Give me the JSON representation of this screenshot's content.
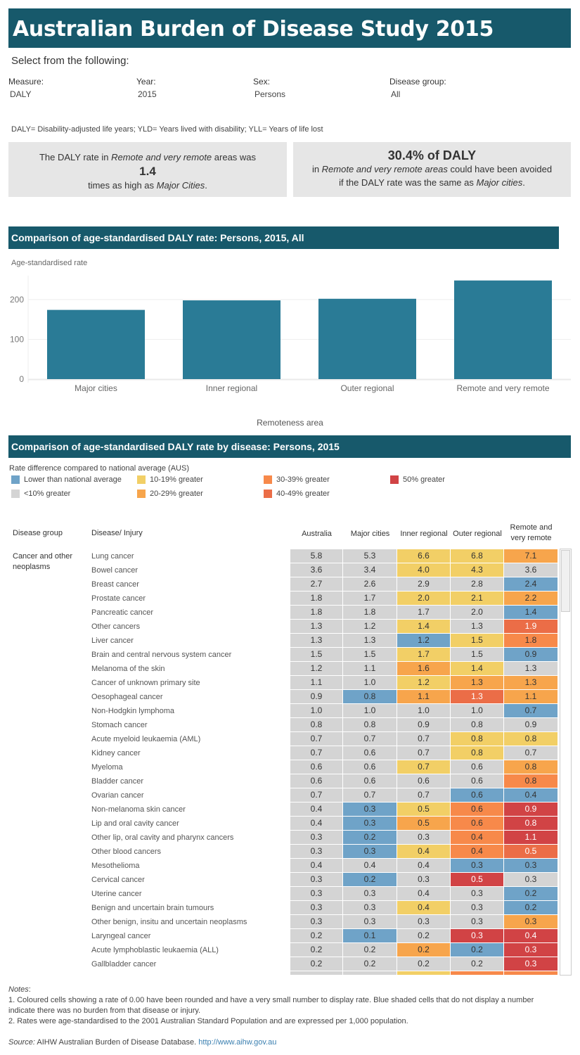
{
  "header": {
    "title": "Australian Burden of Disease Study 2015",
    "select_prompt": "Select from the following:"
  },
  "filters": [
    {
      "label": "Measure:",
      "value": "DALY"
    },
    {
      "label": "Year:",
      "value": "2015"
    },
    {
      "label": "Sex:",
      "value": "Persons"
    },
    {
      "label": "Disease group:",
      "value": "All"
    }
  ],
  "abbreviations": "DALY= Disability-adjusted life years; YLD= Years lived with disability; YLL= Years of life lost",
  "summary_left": {
    "pre": "The DALY rate in ",
    "area": "Remote and very remote",
    "post": " areas was",
    "value": "1.4",
    "line3a": "times as high as ",
    "ref": "Major Cities",
    "line3b": "."
  },
  "summary_right": {
    "headline": "30.4% of DALY",
    "l2a": "in ",
    "area": "Remote and very remote areas",
    "l2b": " could have been avoided",
    "l3a": "if the DALY rate was the same as ",
    "ref": "Major cities",
    "l3b": "."
  },
  "bar_section": {
    "title": "Comparison of age-standardised DALY rate:  Persons, 2015, All"
  },
  "chart_data": {
    "type": "bar",
    "title": "Comparison of age-standardised DALY rate:  Persons, 2015, All",
    "ylabel": "Age-standardised rate",
    "xlabel": "Remoteness area",
    "categories": [
      "Major cities",
      "Inner regional",
      "Outer regional",
      "Remote and very remote"
    ],
    "values": [
      174,
      198,
      202,
      248
    ],
    "ylim": [
      0,
      260
    ],
    "yticks": [
      "0",
      "100",
      "200"
    ],
    "grid": true,
    "color": "#2a7b96"
  },
  "table_section": {
    "title": "Comparison of age-standardised DALY rate by disease: Persons, 2015"
  },
  "legend": {
    "title": "Rate difference compared to national average (AUS)",
    "items": [
      {
        "key": "lower",
        "label": "Lower than national average",
        "color": "#6fa3c8"
      },
      {
        "key": "lt10",
        "label": "<10% greater",
        "color": "#d4d4d4"
      },
      {
        "key": "g10",
        "label": "10-19% greater",
        "color": "#f2cf66"
      },
      {
        "key": "g20",
        "label": "20-29% greater",
        "color": "#f7a54c"
      },
      {
        "key": "g30",
        "label": "30-39% greater",
        "color": "#f7894a"
      },
      {
        "key": "g40",
        "label": "40-49% greater",
        "color": "#eb6d47"
      },
      {
        "key": "g50",
        "label": "50% greater",
        "color": "#d14345"
      }
    ]
  },
  "table": {
    "headers": {
      "group": "Disease group",
      "disease": "Disease/ Injury",
      "cols": [
        "Australia",
        "Major cities",
        "Inner regional",
        "Outer regional",
        "Remote and\nvery remote"
      ]
    },
    "group_label": "Cancer and other neoplasms",
    "rows": [
      {
        "name": "Lung cancer",
        "v": [
          "5.8",
          "5.3",
          "6.6",
          "6.8",
          "7.1"
        ],
        "c": [
          "lt10",
          "lt10",
          "g10",
          "g10",
          "g20"
        ]
      },
      {
        "name": "Bowel cancer",
        "v": [
          "3.6",
          "3.4",
          "4.0",
          "4.3",
          "3.6"
        ],
        "c": [
          "lt10",
          "lt10",
          "g10",
          "g10",
          "lt10"
        ]
      },
      {
        "name": "Breast cancer",
        "v": [
          "2.7",
          "2.6",
          "2.9",
          "2.8",
          "2.4"
        ],
        "c": [
          "lt10",
          "lt10",
          "lt10",
          "lt10",
          "lower"
        ]
      },
      {
        "name": "Prostate cancer",
        "v": [
          "1.8",
          "1.7",
          "2.0",
          "2.1",
          "2.2"
        ],
        "c": [
          "lt10",
          "lt10",
          "g10",
          "g10",
          "g20"
        ]
      },
      {
        "name": "Pancreatic cancer",
        "v": [
          "1.8",
          "1.8",
          "1.7",
          "2.0",
          "1.4"
        ],
        "c": [
          "lt10",
          "lt10",
          "lt10",
          "lt10",
          "lower"
        ]
      },
      {
        "name": "Other cancers",
        "v": [
          "1.3",
          "1.2",
          "1.4",
          "1.3",
          "1.9"
        ],
        "c": [
          "lt10",
          "lt10",
          "g10",
          "lt10",
          "g40"
        ]
      },
      {
        "name": "Liver cancer",
        "v": [
          "1.3",
          "1.3",
          "1.2",
          "1.5",
          "1.8"
        ],
        "c": [
          "lt10",
          "lt10",
          "lower",
          "g10",
          "g30"
        ]
      },
      {
        "name": "Brain and central nervous system cancer",
        "v": [
          "1.5",
          "1.5",
          "1.7",
          "1.5",
          "0.9"
        ],
        "c": [
          "lt10",
          "lt10",
          "g10",
          "lt10",
          "lower"
        ]
      },
      {
        "name": "Melanoma of the skin",
        "v": [
          "1.2",
          "1.1",
          "1.6",
          "1.4",
          "1.3"
        ],
        "c": [
          "lt10",
          "lt10",
          "g20",
          "g10",
          "lt10"
        ]
      },
      {
        "name": "Cancer of unknown primary site",
        "v": [
          "1.1",
          "1.0",
          "1.2",
          "1.3",
          "1.3"
        ],
        "c": [
          "lt10",
          "lt10",
          "g10",
          "g20",
          "g20"
        ]
      },
      {
        "name": "Oesophageal cancer",
        "v": [
          "0.9",
          "0.8",
          "1.1",
          "1.3",
          "1.1"
        ],
        "c": [
          "lt10",
          "lower",
          "g20",
          "g40",
          "g20"
        ]
      },
      {
        "name": "Non-Hodgkin lymphoma",
        "v": [
          "1.0",
          "1.0",
          "1.0",
          "1.0",
          "0.7"
        ],
        "c": [
          "lt10",
          "lt10",
          "lt10",
          "lt10",
          "lower"
        ]
      },
      {
        "name": "Stomach cancer",
        "v": [
          "0.8",
          "0.8",
          "0.9",
          "0.8",
          "0.9"
        ],
        "c": [
          "lt10",
          "lt10",
          "lt10",
          "lt10",
          "lt10"
        ]
      },
      {
        "name": "Acute myeloid leukaemia (AML)",
        "v": [
          "0.7",
          "0.7",
          "0.7",
          "0.8",
          "0.8"
        ],
        "c": [
          "lt10",
          "lt10",
          "lt10",
          "g10",
          "g10"
        ]
      },
      {
        "name": "Kidney cancer",
        "v": [
          "0.7",
          "0.6",
          "0.7",
          "0.8",
          "0.7"
        ],
        "c": [
          "lt10",
          "lt10",
          "lt10",
          "g10",
          "lt10"
        ]
      },
      {
        "name": "Myeloma",
        "v": [
          "0.6",
          "0.6",
          "0.7",
          "0.6",
          "0.8"
        ],
        "c": [
          "lt10",
          "lt10",
          "g10",
          "lt10",
          "g20"
        ]
      },
      {
        "name": "Bladder cancer",
        "v": [
          "0.6",
          "0.6",
          "0.6",
          "0.6",
          "0.8"
        ],
        "c": [
          "lt10",
          "lt10",
          "lt10",
          "lt10",
          "g30"
        ]
      },
      {
        "name": "Ovarian cancer",
        "v": [
          "0.7",
          "0.7",
          "0.7",
          "0.6",
          "0.4"
        ],
        "c": [
          "lt10",
          "lt10",
          "lt10",
          "lower",
          "lower"
        ]
      },
      {
        "name": "Non-melanoma skin cancer",
        "v": [
          "0.4",
          "0.3",
          "0.5",
          "0.6",
          "0.9"
        ],
        "c": [
          "lt10",
          "lower",
          "g10",
          "g30",
          "g50"
        ]
      },
      {
        "name": "Lip and oral cavity cancer",
        "v": [
          "0.4",
          "0.3",
          "0.5",
          "0.6",
          "0.8"
        ],
        "c": [
          "lt10",
          "lower",
          "g20",
          "g30",
          "g50"
        ]
      },
      {
        "name": "Other lip, oral cavity and pharynx cancers",
        "v": [
          "0.3",
          "0.2",
          "0.3",
          "0.4",
          "1.1"
        ],
        "c": [
          "lt10",
          "lower",
          "lt10",
          "g30",
          "g50"
        ]
      },
      {
        "name": "Other blood cancers",
        "v": [
          "0.3",
          "0.3",
          "0.4",
          "0.4",
          "0.5"
        ],
        "c": [
          "lt10",
          "lower",
          "g10",
          "g30",
          "g40"
        ]
      },
      {
        "name": "Mesothelioma",
        "v": [
          "0.4",
          "0.4",
          "0.4",
          "0.3",
          "0.3"
        ],
        "c": [
          "lt10",
          "lt10",
          "lt10",
          "lower",
          "lower"
        ]
      },
      {
        "name": "Cervical cancer",
        "v": [
          "0.3",
          "0.2",
          "0.3",
          "0.5",
          "0.3"
        ],
        "c": [
          "lt10",
          "lower",
          "lt10",
          "g50",
          "lt10"
        ]
      },
      {
        "name": "Uterine cancer",
        "v": [
          "0.3",
          "0.3",
          "0.4",
          "0.3",
          "0.2"
        ],
        "c": [
          "lt10",
          "lt10",
          "lt10",
          "lt10",
          "lower"
        ]
      },
      {
        "name": "Benign and uncertain brain tumours",
        "v": [
          "0.3",
          "0.3",
          "0.4",
          "0.3",
          "0.2"
        ],
        "c": [
          "lt10",
          "lt10",
          "g10",
          "lt10",
          "lower"
        ]
      },
      {
        "name": "Other benign, insitu and uncertain neoplasms",
        "v": [
          "0.3",
          "0.3",
          "0.3",
          "0.3",
          "0.3"
        ],
        "c": [
          "lt10",
          "lt10",
          "lt10",
          "lt10",
          "g20"
        ]
      },
      {
        "name": "Laryngeal cancer",
        "v": [
          "0.2",
          "0.1",
          "0.2",
          "0.3",
          "0.4"
        ],
        "c": [
          "lt10",
          "lower",
          "lt10",
          "g50",
          "g50"
        ]
      },
      {
        "name": "Acute lymphoblastic leukaemia (ALL)",
        "v": [
          "0.2",
          "0.2",
          "0.2",
          "0.2",
          "0.3"
        ],
        "c": [
          "lt10",
          "lt10",
          "g20",
          "lower",
          "g50"
        ]
      },
      {
        "name": "Gallbladder cancer",
        "v": [
          "0.2",
          "0.2",
          "0.2",
          "0.2",
          "0.3"
        ],
        "c": [
          "lt10",
          "lt10",
          "lt10",
          "lt10",
          "g50"
        ]
      },
      {
        "name": "",
        "v": [
          "",
          "",
          "",
          "",
          ""
        ],
        "c": [
          "lt10",
          "lt10",
          "g10",
          "g30",
          "g30"
        ]
      }
    ]
  },
  "notes": {
    "title": "Notes",
    "n1a": "1. Coloured cells showing a rate of 0.00 have been rounded and have a very small number to display rate. Blue shaded cells that do not display a number",
    "n1b": "indicate there was no burden from that disease or injury.",
    "n2": "2. Rates were age-standardised to the 2001 Australian Standard Population and are expressed per 1,000 population.",
    "source_label": "Source:",
    "source_text": " AIHW Australian Burden of Disease Database. ",
    "source_link": "http://www.aihw.gov.au"
  }
}
